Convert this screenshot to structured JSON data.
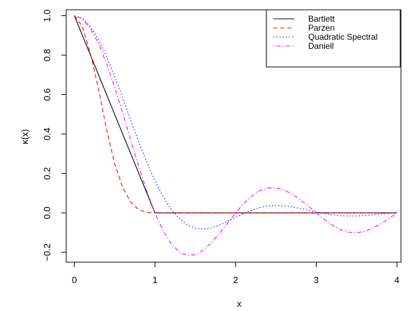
{
  "chart_data": {
    "type": "line",
    "title": "",
    "xlabel": "x",
    "ylabel": "κ(x)",
    "xlim": [
      -0.1,
      4.05
    ],
    "ylim": [
      -0.25,
      1.03
    ],
    "x_ticks": [
      0,
      1,
      2,
      3,
      4
    ],
    "x_tick_labels": [
      "0",
      "1",
      "2",
      "3",
      "4"
    ],
    "y_ticks": [
      -0.2,
      0.0,
      0.2,
      0.4,
      0.6,
      0.8,
      1.0
    ],
    "y_tick_labels": [
      "−0.2",
      "0.0",
      "0.2",
      "0.4",
      "0.6",
      "0.8",
      "1.0"
    ],
    "grid": false,
    "legend_position": "top-right",
    "series": [
      {
        "name": "Bartlett",
        "color": "#000000",
        "dash": "solid",
        "x": [
          0,
          0.25,
          0.5,
          0.75,
          1,
          1.5,
          2,
          2.5,
          3,
          3.5,
          4
        ],
        "y": [
          1.0,
          0.75,
          0.5,
          0.25,
          0.0,
          0.0,
          0.0,
          0.0,
          0.0,
          0.0,
          0.0
        ]
      },
      {
        "name": "Parzen",
        "color": "#ff0000",
        "dash": "dashed",
        "x": [
          0,
          0.1,
          0.2,
          0.3,
          0.4,
          0.5,
          0.6,
          0.7,
          0.8,
          0.9,
          1.0,
          1.5,
          2,
          2.5,
          3,
          3.5,
          4
        ],
        "y": [
          1.0,
          0.946,
          0.808,
          0.628,
          0.424,
          0.25,
          0.128,
          0.054,
          0.016,
          0.002,
          0.0,
          0.0,
          0.0,
          0.0,
          0.0,
          0.0,
          0.0
        ]
      },
      {
        "name": "Quadratic Spectral",
        "color": "#0000ff",
        "dash": "dotted",
        "x": [
          0,
          0.1,
          0.2,
          0.3,
          0.4,
          0.5,
          0.6,
          0.7,
          0.8,
          0.9,
          1.0,
          1.1,
          1.2,
          1.3,
          1.4,
          1.5,
          1.6,
          1.7,
          1.8,
          1.9,
          2.0,
          2.1,
          2.2,
          2.3,
          2.4,
          2.5,
          2.6,
          2.7,
          2.8,
          2.9,
          3.0,
          3.1,
          3.2,
          3.3,
          3.4,
          3.5,
          3.6,
          3.7,
          3.8,
          3.9,
          4.0
        ],
        "y": [
          1.0,
          0.986,
          0.945,
          0.879,
          0.793,
          0.692,
          0.583,
          0.47,
          0.359,
          0.255,
          0.162,
          0.083,
          0.019,
          -0.028,
          -0.06,
          -0.077,
          -0.082,
          -0.076,
          -0.062,
          -0.043,
          -0.023,
          -0.003,
          0.014,
          0.027,
          0.035,
          0.038,
          0.036,
          0.031,
          0.023,
          0.014,
          0.005,
          -0.003,
          -0.01,
          -0.014,
          -0.016,
          -0.016,
          -0.014,
          -0.01,
          -0.006,
          -0.002,
          0.002
        ]
      },
      {
        "name": "Daniell",
        "color": "#ff00ff",
        "dash": "dotdash",
        "x": [
          0,
          0.1,
          0.2,
          0.3,
          0.4,
          0.5,
          0.6,
          0.7,
          0.8,
          0.9,
          1.0,
          1.1,
          1.2,
          1.3,
          1.4,
          1.5,
          1.6,
          1.7,
          1.8,
          1.9,
          2.0,
          2.1,
          2.2,
          2.3,
          2.4,
          2.5,
          2.6,
          2.7,
          2.8,
          2.9,
          3.0,
          3.1,
          3.2,
          3.3,
          3.4,
          3.5,
          3.6,
          3.7,
          3.8,
          3.9,
          4.0
        ],
        "y": [
          1.0,
          0.984,
          0.935,
          0.858,
          0.757,
          0.637,
          0.505,
          0.368,
          0.234,
          0.109,
          0.0,
          -0.089,
          -0.156,
          -0.198,
          -0.216,
          -0.212,
          -0.189,
          -0.151,
          -0.104,
          -0.052,
          0.0,
          0.047,
          0.085,
          0.112,
          0.126,
          0.127,
          0.116,
          0.095,
          0.067,
          0.035,
          0.0,
          -0.033,
          -0.063,
          -0.085,
          -0.098,
          -0.101,
          -0.094,
          -0.078,
          -0.056,
          -0.029,
          0.0
        ]
      }
    ]
  }
}
